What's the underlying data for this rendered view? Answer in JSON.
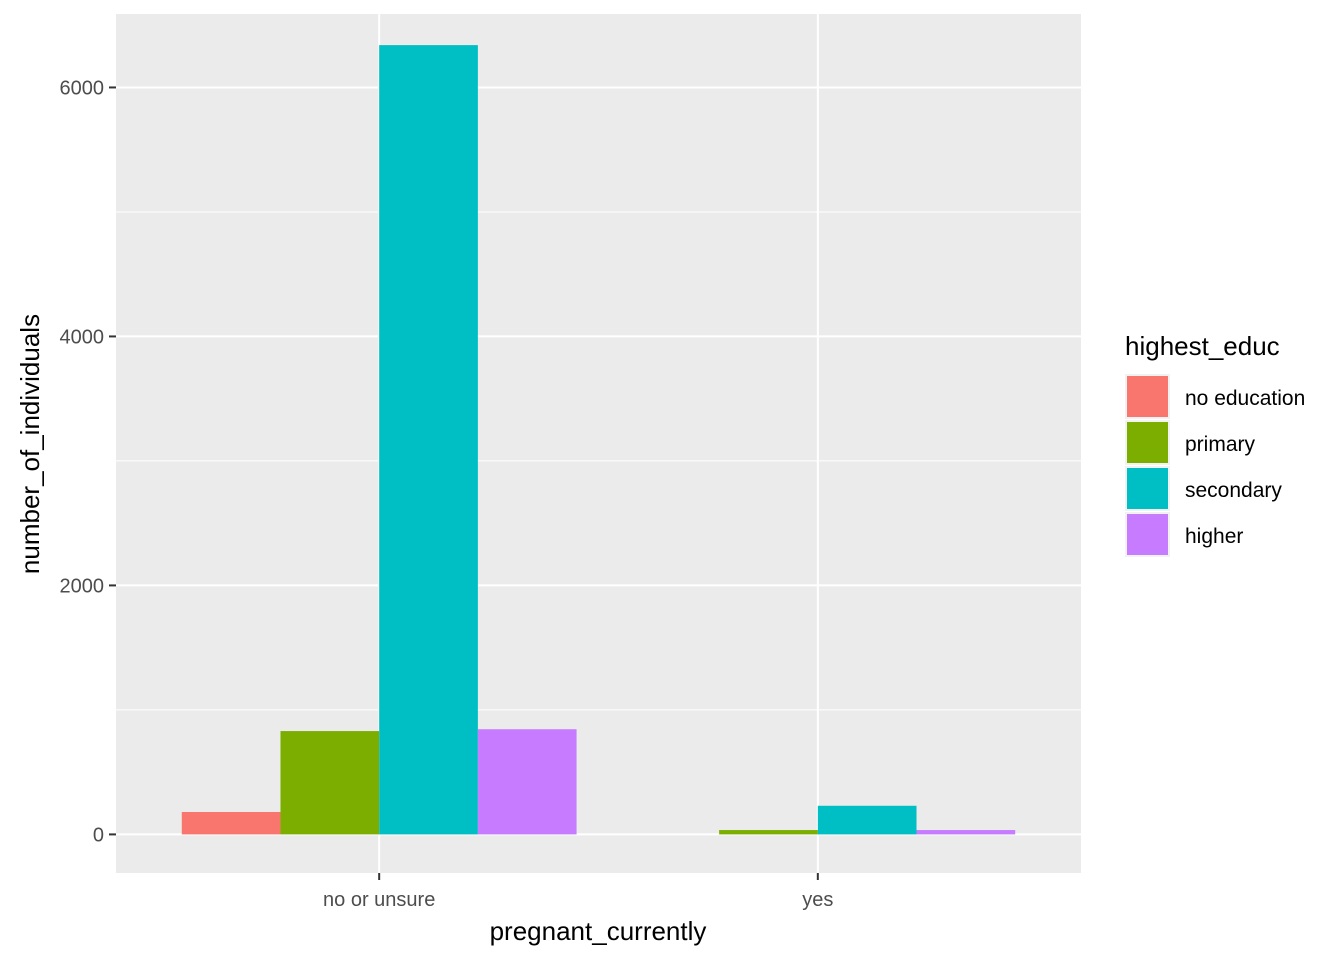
{
  "chart_data": {
    "type": "bar",
    "xlabel": "pregnant_currently",
    "ylabel": "number_of_individuals",
    "categories": [
      "no or unsure",
      "yes"
    ],
    "series": [
      {
        "name": "no education",
        "color": "#F8766D",
        "values": [
          180,
          0
        ]
      },
      {
        "name": "primary",
        "color": "#7CAE00",
        "values": [
          830,
          35
        ]
      },
      {
        "name": "secondary",
        "color": "#00BFC4",
        "values": [
          6340,
          230
        ]
      },
      {
        "name": "higher",
        "color": "#C77CFF",
        "values": [
          845,
          35
        ]
      }
    ],
    "ylim": [
      -310,
      6590
    ],
    "yticks": [
      0,
      2000,
      4000,
      6000
    ],
    "grid": true,
    "legend": {
      "title": "highest_educ",
      "position": "right"
    }
  }
}
